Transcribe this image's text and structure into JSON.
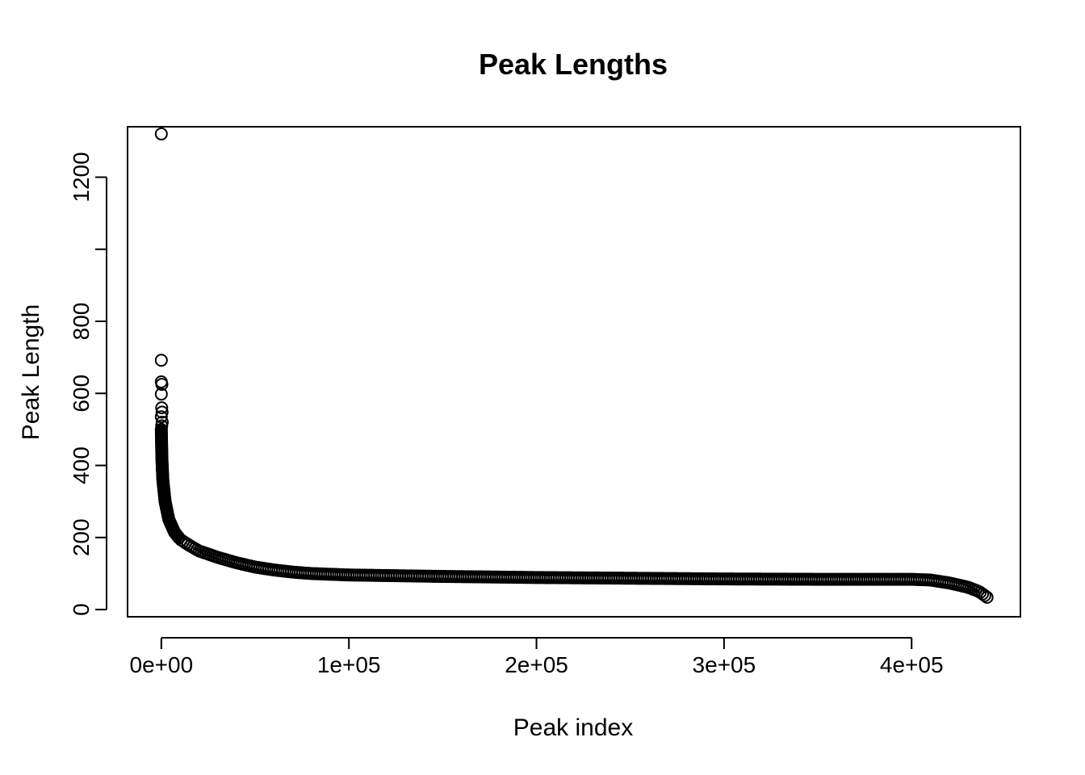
{
  "chart_data": {
    "type": "scatter",
    "title": "Peak Lengths",
    "xlabel": "Peak index",
    "ylabel": "Peak Length",
    "xlim": [
      -18000,
      458000
    ],
    "ylim": [
      -20,
      1340
    ],
    "x_ticks": [
      {
        "value": 0,
        "label": "0e+00"
      },
      {
        "value": 100000,
        "label": "1e+05"
      },
      {
        "value": 200000,
        "label": "2e+05"
      },
      {
        "value": 300000,
        "label": "3e+05"
      },
      {
        "value": 400000,
        "label": "4e+05"
      }
    ],
    "y_ticks": [
      {
        "value": 0,
        "label": "0"
      },
      {
        "value": 200,
        "label": "200"
      },
      {
        "value": 400,
        "label": "400"
      },
      {
        "value": 600,
        "label": "600"
      },
      {
        "value": 800,
        "label": "800"
      },
      {
        "value": 1000,
        "label": ""
      },
      {
        "value": 1200,
        "label": "1200"
      }
    ],
    "outliers": [
      {
        "x": 0,
        "y": 1320
      },
      {
        "x": 0,
        "y": 692
      },
      {
        "x": 0,
        "y": 632
      },
      {
        "x": 300,
        "y": 625
      },
      {
        "x": 0,
        "y": 598
      },
      {
        "x": 200,
        "y": 560
      },
      {
        "x": 400,
        "y": 548
      },
      {
        "x": 0,
        "y": 535
      },
      {
        "x": 500,
        "y": 520
      },
      {
        "x": 200,
        "y": 510
      }
    ],
    "curve": [
      {
        "x": 0,
        "y": 500
      },
      {
        "x": 300,
        "y": 420
      },
      {
        "x": 800,
        "y": 360
      },
      {
        "x": 2000,
        "y": 300
      },
      {
        "x": 4000,
        "y": 250
      },
      {
        "x": 7000,
        "y": 215
      },
      {
        "x": 10000,
        "y": 195
      },
      {
        "x": 15000,
        "y": 178
      },
      {
        "x": 20000,
        "y": 163
      },
      {
        "x": 30000,
        "y": 145
      },
      {
        "x": 40000,
        "y": 130
      },
      {
        "x": 50000,
        "y": 118
      },
      {
        "x": 60000,
        "y": 110
      },
      {
        "x": 70000,
        "y": 104
      },
      {
        "x": 80000,
        "y": 100
      },
      {
        "x": 100000,
        "y": 96
      },
      {
        "x": 150000,
        "y": 92
      },
      {
        "x": 200000,
        "y": 89
      },
      {
        "x": 250000,
        "y": 87
      },
      {
        "x": 300000,
        "y": 85
      },
      {
        "x": 350000,
        "y": 84
      },
      {
        "x": 400000,
        "y": 84
      },
      {
        "x": 410000,
        "y": 82
      },
      {
        "x": 420000,
        "y": 74
      },
      {
        "x": 430000,
        "y": 62
      },
      {
        "x": 436000,
        "y": 50
      },
      {
        "x": 440000,
        "y": 35
      },
      {
        "x": 441000,
        "y": 30
      }
    ]
  }
}
